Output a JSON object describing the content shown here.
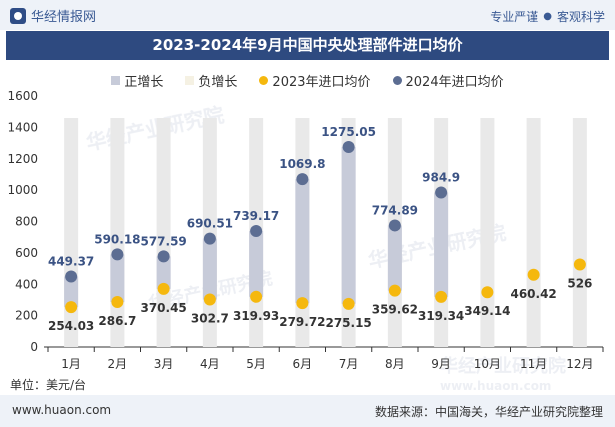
{
  "header": {
    "brand": "华经情报网",
    "tagline_left": "专业严谨",
    "tagline_right": "客观科学"
  },
  "title": "2023-2024年9月中国中央处理部件进口均价",
  "legend": {
    "positive": "正增长",
    "negative": "负增长",
    "series2023": "2023年进口均价",
    "series2024": "2024年进口均价"
  },
  "unit_label": "单位：美元/台",
  "footer": {
    "site": "www.huaon.com",
    "source": "数据来源：中国海关，华经产业研究院整理"
  },
  "colors": {
    "positive": "#c7cbd9",
    "negative": "#f5f1e3",
    "series2023": "#f5b80e",
    "series2024": "#5c6d92",
    "track": "#e9e9e9",
    "title_bg": "#2e4a80"
  },
  "chart_data": {
    "type": "dot-bar",
    "categories": [
      "1月",
      "2月",
      "3月",
      "4月",
      "5月",
      "6月",
      "7月",
      "8月",
      "9月",
      "10月",
      "11月",
      "12月"
    ],
    "ylim": [
      0,
      1600
    ],
    "yticks": [
      0,
      200,
      400,
      600,
      800,
      1000,
      1200,
      1400,
      1600
    ],
    "series": [
      {
        "name": "2023年进口均价",
        "values": [
          254.03,
          286.7,
          370.45,
          302.7,
          319.93,
          279.72,
          275.15,
          359.62,
          319.34,
          349.14,
          460.42,
          526
        ]
      },
      {
        "name": "2024年进口均价",
        "values": [
          449.37,
          590.18,
          577.59,
          690.51,
          739.17,
          1069.8,
          1275.05,
          774.89,
          984.9,
          null,
          null,
          null
        ]
      }
    ],
    "labels_2023": [
      "254.03",
      "286.7",
      "370.45",
      "302.7",
      "319.93",
      "279.72",
      "275.15",
      "359.62",
      "319.34",
      "349.14",
      "460.42",
      "526"
    ],
    "labels_2024": [
      "449.37",
      "590.18",
      "577.59",
      "690.51",
      "739.17",
      "1069.8",
      "1275.05",
      "774.89",
      "984.9"
    ]
  }
}
